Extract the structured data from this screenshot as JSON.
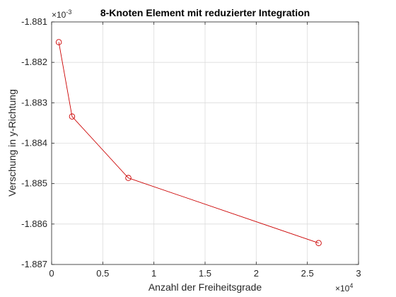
{
  "chart_data": {
    "type": "line",
    "title": "8-Knoten Element mit reduzierter Integration",
    "xlabel": "Anzahl der Freiheitsgrade",
    "ylabel": "Verschung in y-Richtung",
    "x_exponent_label": "×10",
    "x_exponent_power": "4",
    "y_exponent_label": "×10",
    "y_exponent_power": "-3",
    "xlim": [
      0,
      3
    ],
    "ylim": [
      -1.887,
      -1.881
    ],
    "x_ticks": [
      0,
      0.5,
      1,
      1.5,
      2,
      2.5,
      3
    ],
    "x_tick_labels": [
      "0",
      "0.5",
      "1",
      "1.5",
      "2",
      "2.5",
      "3"
    ],
    "y_ticks": [
      -1.887,
      -1.886,
      -1.885,
      -1.884,
      -1.883,
      -1.882,
      -1.881
    ],
    "y_tick_labels": [
      "-1.887",
      "-1.886",
      "-1.885",
      "-1.884",
      "-1.883",
      "-1.882",
      "-1.881"
    ],
    "grid": true,
    "series": [
      {
        "color": "#cc0000",
        "marker": "circle",
        "x": [
          0.07,
          0.2,
          0.75,
          2.61
        ],
        "y": [
          -1.8815,
          -1.88334,
          -1.88486,
          -1.88647
        ]
      }
    ]
  }
}
